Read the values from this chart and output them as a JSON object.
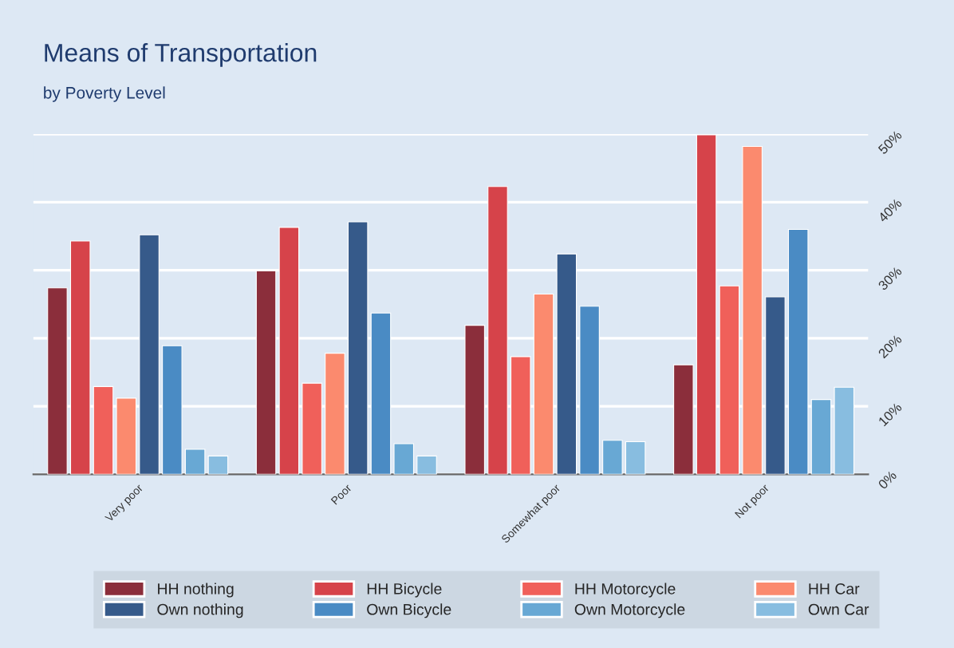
{
  "chart_data": {
    "type": "bar",
    "title": "Means of Transportation",
    "subtitle": "by Poverty Level",
    "categories": [
      "Very poor",
      "Poor",
      "Somewhat poor",
      "Not poor"
    ],
    "series": [
      {
        "name": "HH nothing",
        "color": "#8b2e3b",
        "values": [
          27.4,
          29.9,
          21.9,
          16.1
        ]
      },
      {
        "name": "HH Bicycle",
        "color": "#d6434a",
        "values": [
          34.3,
          36.3,
          42.3,
          49.9
        ]
      },
      {
        "name": "HH Motorcycle",
        "color": "#f0605a",
        "values": [
          12.9,
          13.4,
          17.3,
          27.7
        ]
      },
      {
        "name": "HH Car",
        "color": "#fb8a6e",
        "values": [
          11.2,
          17.8,
          26.5,
          48.2
        ]
      },
      {
        "name": "Own nothing",
        "color": "#365a8a",
        "values": [
          35.2,
          37.1,
          32.4,
          26.1
        ]
      },
      {
        "name": "Own Bicycle",
        "color": "#4a8bc4",
        "values": [
          18.9,
          23.7,
          24.7,
          36.0
        ]
      },
      {
        "name": "Own Motorcycle",
        "color": "#68a8d4",
        "values": [
          3.7,
          4.5,
          5.0,
          11.0
        ]
      },
      {
        "name": "Own Car",
        "color": "#88bde0",
        "values": [
          2.7,
          2.7,
          4.8,
          12.8
        ]
      }
    ],
    "ylim": [
      0,
      50
    ],
    "yticks": [
      {
        "value": 0,
        "label": "0%"
      },
      {
        "value": 10,
        "label": "10%"
      },
      {
        "value": 20,
        "label": "20%"
      },
      {
        "value": 30,
        "label": "30%"
      },
      {
        "value": 40,
        "label": "40%"
      },
      {
        "value": 50,
        "label": "50%"
      }
    ],
    "grid": "y",
    "legend": "bottom"
  }
}
